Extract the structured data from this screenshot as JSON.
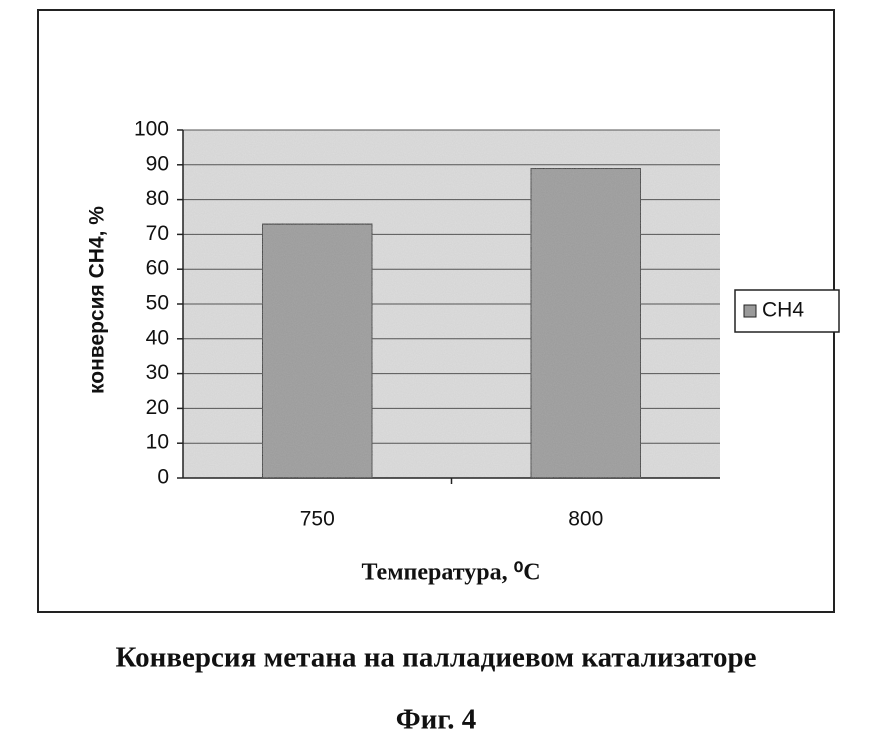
{
  "chart_data": {
    "type": "bar",
    "y_label": "конверсия CH4, %",
    "x_label": "Температура, ⁰C",
    "caption": "Конверсия метана на палладиевом катализаторе",
    "figure_label": "Фиг. 4",
    "categories": [
      "750",
      "800"
    ],
    "series": [
      {
        "name": "CH4",
        "color": "#9a9a9a",
        "values": [
          73,
          89
        ]
      }
    ],
    "ylim": [
      0,
      100
    ],
    "yticks": [
      0,
      10,
      20,
      30,
      40,
      50,
      60,
      70,
      80,
      90,
      100
    ],
    "grid": true,
    "legend": "right"
  }
}
